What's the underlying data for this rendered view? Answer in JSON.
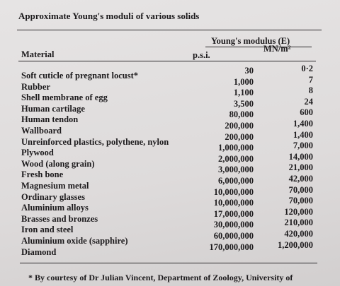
{
  "table": {
    "title": "Approximate Young's moduli of various solids",
    "header": {
      "modulus": "Young's modulus (E)",
      "material": "Material",
      "psi": "p.s.i.",
      "si": "MN/m²"
    },
    "rows": [
      [
        "Soft cuticle of pregnant locust*",
        "30",
        "0·2"
      ],
      [
        "Rubber",
        "1,000",
        "7"
      ],
      [
        "Shell membrane of egg",
        "1,100",
        "8"
      ],
      [
        "Human cartilage",
        "3,500",
        "24"
      ],
      [
        "Human tendon",
        "80,000",
        "600"
      ],
      [
        "Wallboard",
        "200,000",
        "1,400"
      ],
      [
        "Unreinforced plastics, polythene, nylon",
        "200,000",
        "1,400"
      ],
      [
        "Plywood",
        "1,000,000",
        "7,000"
      ],
      [
        "Wood (along grain)",
        "2,000,000",
        "14,000"
      ],
      [
        "Fresh bone",
        "3,000,000",
        "21,000"
      ],
      [
        "Magnesium metal",
        "6,000,000",
        "42,000"
      ],
      [
        "Ordinary glasses",
        "10,000,000",
        "70,000"
      ],
      [
        "Aluminium alloys",
        "10,000,000",
        "70,000"
      ],
      [
        "Brasses and bronzes",
        "17,000,000",
        "120,000"
      ],
      [
        "Iron and steel",
        "30,000,000",
        "210,000"
      ],
      [
        "Aluminium oxide (sapphire)",
        "60,000,000",
        "420,000"
      ],
      [
        "Diamond",
        "170,000,000",
        "1,200,000"
      ]
    ],
    "footnote": "* By courtesy of Dr Julian Vincent, Department of Zoology, University of"
  }
}
